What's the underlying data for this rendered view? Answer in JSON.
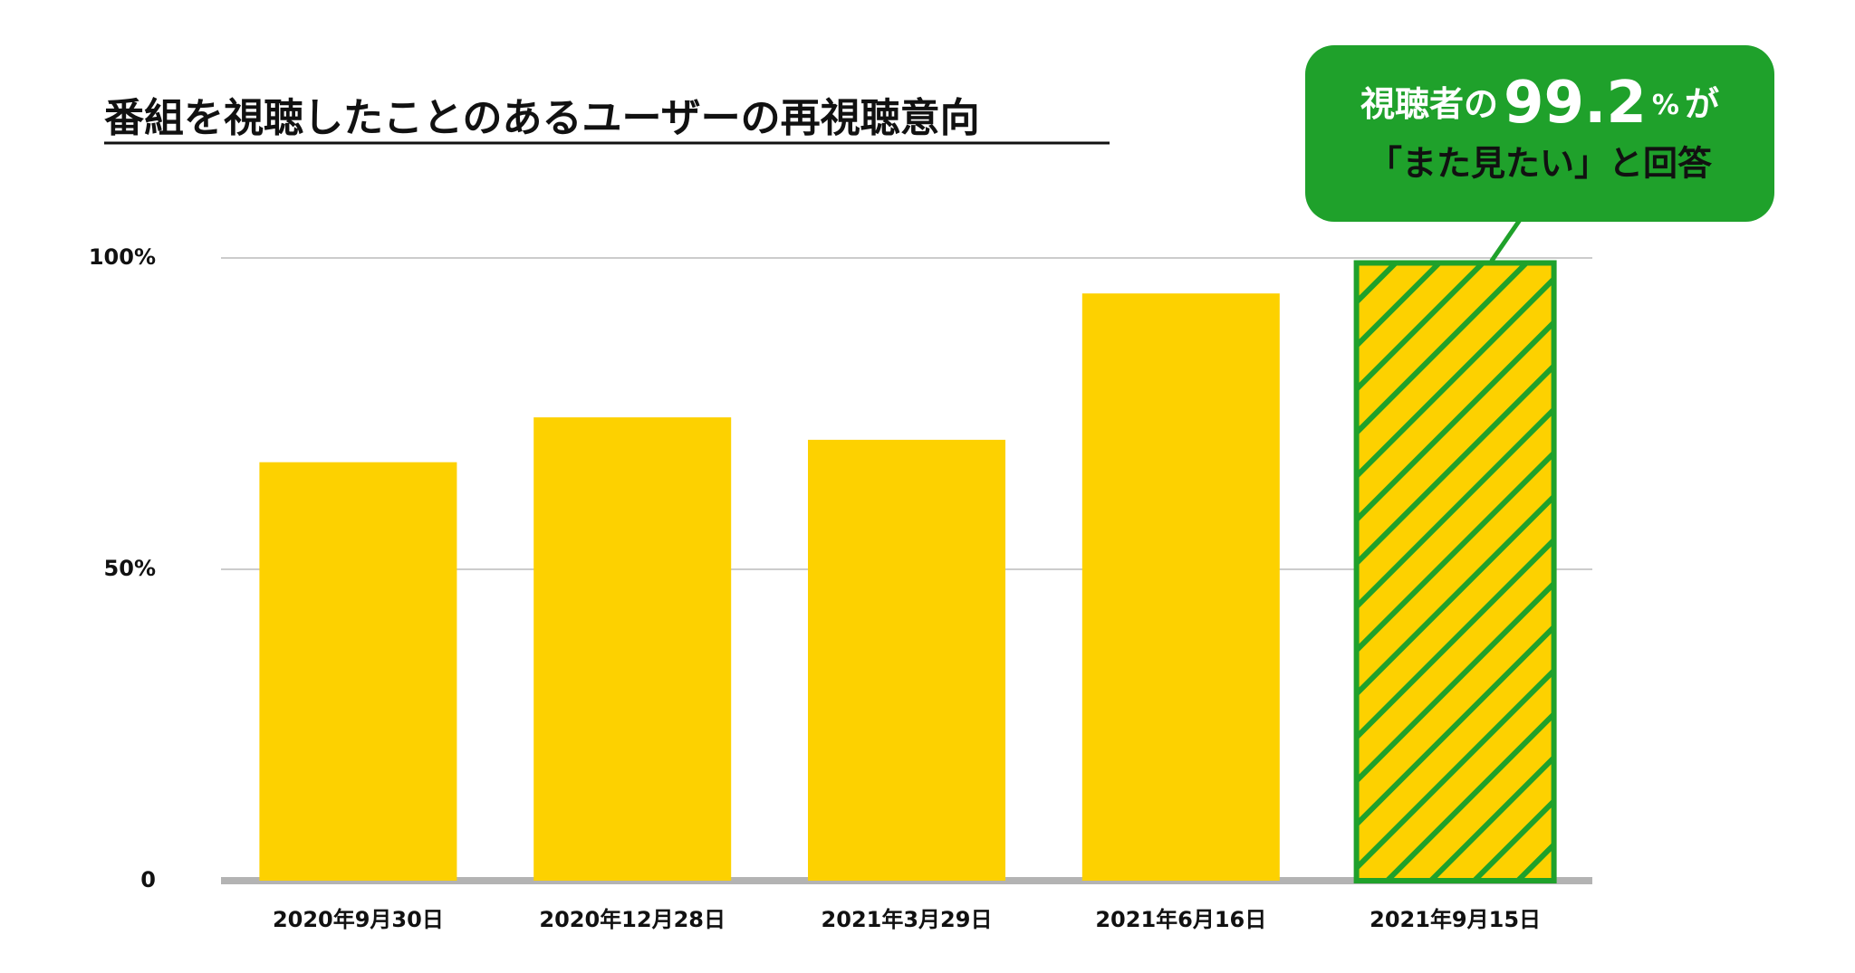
{
  "chart_data": {
    "type": "bar",
    "title": "番組を視聴したことのあるユーザーの再視聴意向",
    "categories": [
      "2020年9月30日",
      "2020年12月28日",
      "2021年3月29日",
      "2021年6月16日",
      "2021年9月15日"
    ],
    "values": [
      67.2,
      74.4,
      70.8,
      94.3,
      99.2
    ],
    "colors": [
      "#fdd100",
      "#fdd100",
      "#fdd100",
      "#fdd100",
      "#fdd100"
    ],
    "patterns": [
      null,
      null,
      null,
      null,
      "hatch"
    ],
    "pattern_color": "#1fa12b",
    "ylim": [
      0,
      100
    ],
    "yticks": [
      0,
      {
        "value": 50,
        "label": "50%"
      },
      {
        "value": 100,
        "label": "100%"
      }
    ],
    "grid": true,
    "annotation": {
      "color": "#1fa12b",
      "before": "視聴者の",
      "number": "99.2",
      "unit": "%",
      "after": "が",
      "line2": "「また見たい」と回答"
    }
  }
}
